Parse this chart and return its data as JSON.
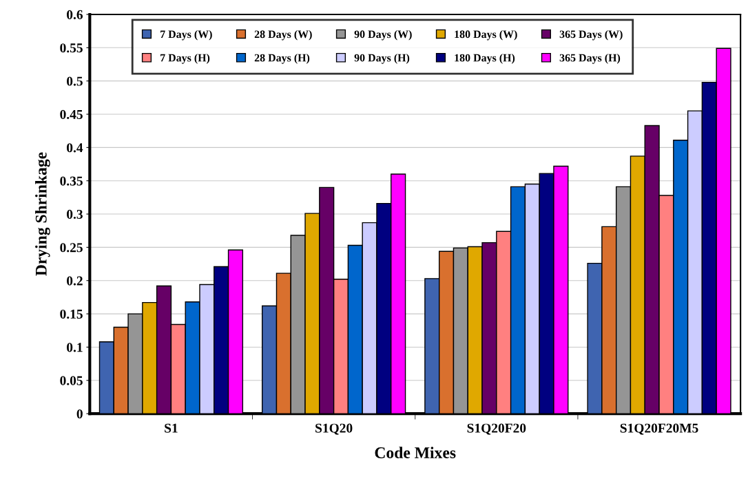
{
  "chart_data": {
    "type": "bar",
    "xlabel": "Code Mixes",
    "ylabel": "Drying Shrinkage",
    "categories": [
      "S1",
      "S1Q20",
      "S1Q20F20",
      "S1Q20F20M5"
    ],
    "series": [
      {
        "name": "7 Days (W)",
        "color": "#3f64b0",
        "values": [
          0.108,
          0.162,
          0.203,
          0.226
        ]
      },
      {
        "name": "28 Days (W)",
        "color": "#d9702e",
        "values": [
          0.13,
          0.211,
          0.244,
          0.281
        ]
      },
      {
        "name": "90 Days (W)",
        "color": "#959595",
        "values": [
          0.15,
          0.268,
          0.249,
          0.341
        ]
      },
      {
        "name": "180 Days (W)",
        "color": "#e0a800",
        "values": [
          0.167,
          0.301,
          0.251,
          0.387
        ]
      },
      {
        "name": "365 Days (W)",
        "color": "#660066",
        "values": [
          0.192,
          0.34,
          0.257,
          0.433
        ]
      },
      {
        "name": "7 Days (H)",
        "color": "#ff8080",
        "values": [
          0.134,
          0.202,
          0.274,
          0.328
        ]
      },
      {
        "name": "28 Days (H)",
        "color": "#0066cc",
        "values": [
          0.168,
          0.253,
          0.341,
          0.411
        ]
      },
      {
        "name": "90 Days (H)",
        "color": "#ccccff",
        "values": [
          0.194,
          0.287,
          0.345,
          0.455
        ]
      },
      {
        "name": "180 Days (H)",
        "color": "#000080",
        "values": [
          0.221,
          0.316,
          0.361,
          0.498
        ]
      },
      {
        "name": "365 Days (H)",
        "color": "#ff00ff",
        "values": [
          0.246,
          0.36,
          0.372,
          0.549
        ]
      }
    ],
    "ylim": [
      0,
      0.6
    ],
    "yticks": [
      {
        "value": 0,
        "label": "0"
      },
      0.05,
      0.1,
      0.15,
      0.2,
      0.25,
      0.3,
      0.35,
      0.4,
      0.45,
      0.5,
      0.55,
      0.6
    ],
    "grid": "y",
    "legend": "top"
  }
}
